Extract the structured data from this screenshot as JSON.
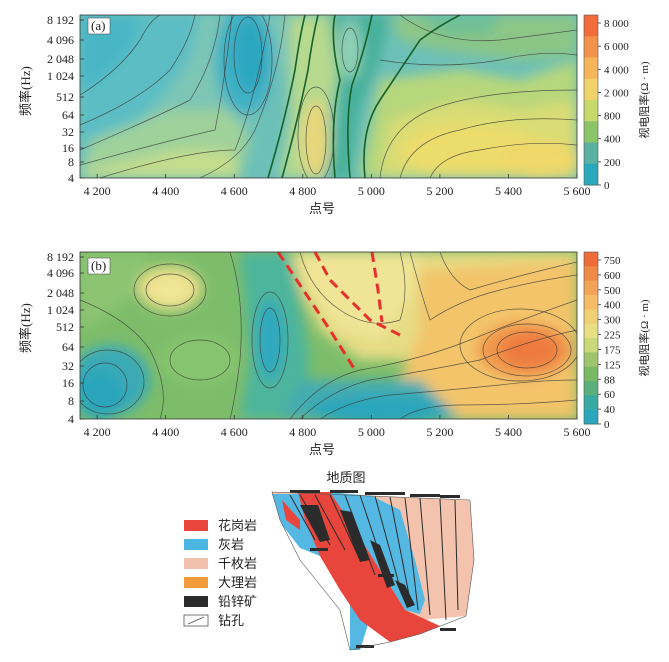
{
  "panel_a": {
    "tag": "(a)",
    "colorbar_label": "视电阻率(Ω · m)"
  },
  "panel_b": {
    "tag": "(b)",
    "colorbar_label": "视电阻率(Ω · m)"
  },
  "geology": {
    "title": "地质图",
    "legend": [
      {
        "label": "花岗岩",
        "color": "#e8453c"
      },
      {
        "label": "灰岩",
        "color": "#4cb6e3"
      },
      {
        "label": "千枚岩",
        "color": "#f2c1ad"
      },
      {
        "label": "大理岩",
        "color": "#f29b3a"
      },
      {
        "label": "铅锌矿",
        "color": "#2b2b2b"
      },
      {
        "label": "钻孔",
        "color": "#ffffff"
      }
    ]
  },
  "chart_data": [
    {
      "type": "heatmap",
      "title": "",
      "xlabel": "点号",
      "ylabel": "频率(Hz)",
      "x_ticks": [
        "4 200",
        "4 400",
        "4 600",
        "4 800",
        "5 000",
        "5 200",
        "5 400",
        "5 600"
      ],
      "x_values": [
        4200,
        4400,
        4600,
        4800,
        5000,
        5200,
        5400,
        5600
      ],
      "xlim": [
        4150,
        5600
      ],
      "y_ticks": [
        "8 192",
        "4 096",
        "2 048",
        "1 024",
        "512",
        "64",
        "32",
        "16",
        "8",
        "4"
      ],
      "y_values": [
        8192,
        4096,
        2048,
        1024,
        512,
        64,
        32,
        16,
        8,
        4
      ],
      "y_scale": "log2",
      "colorbar_ticks": [
        "8 000",
        "6 000",
        "4 000",
        "2 000",
        "800",
        "400",
        "200",
        "0"
      ],
      "colorbar_values": [
        8000,
        6000,
        4000,
        2000,
        800,
        400,
        200,
        0
      ],
      "colorbar_colors": [
        "#f26b3a",
        "#f3924a",
        "#f5b65a",
        "#efd36a",
        "#c8d86a",
        "#8cc46a",
        "#5bb0a4",
        "#2aa8bc"
      ],
      "legend_label": "视电阻率(Ω · m)"
    },
    {
      "type": "heatmap",
      "title": "",
      "xlabel": "点号",
      "ylabel": "频率(Hz)",
      "x_ticks": [
        "4 200",
        "4 400",
        "4 600",
        "4 800",
        "5 000",
        "5 200",
        "5 400",
        "5 600"
      ],
      "x_values": [
        4200,
        4400,
        4600,
        4800,
        5000,
        5200,
        5400,
        5600
      ],
      "xlim": [
        4150,
        5600
      ],
      "y_ticks": [
        "8 192",
        "4 096",
        "2 048",
        "1 024",
        "512",
        "64",
        "32",
        "16",
        "8",
        "4"
      ],
      "y_values": [
        8192,
        4096,
        2048,
        1024,
        512,
        64,
        32,
        16,
        8,
        4
      ],
      "y_scale": "log2",
      "colorbar_ticks": [
        "750",
        "600",
        "500",
        "400",
        "300",
        "225",
        "175",
        "125",
        "88",
        "60",
        "40",
        "0"
      ],
      "colorbar_values": [
        750,
        600,
        500,
        400,
        300,
        225,
        175,
        125,
        88,
        60,
        40,
        0
      ],
      "colorbar_colors": [
        "#ee6b3a",
        "#f08a48",
        "#f3a358",
        "#f5bb66",
        "#f1cf74",
        "#e8de84",
        "#c9d97a",
        "#9fc56c",
        "#79b964",
        "#5aaf7c",
        "#3aa9a4",
        "#2aa7bc"
      ],
      "legend_label": "视电阻率(Ω · m)"
    }
  ]
}
